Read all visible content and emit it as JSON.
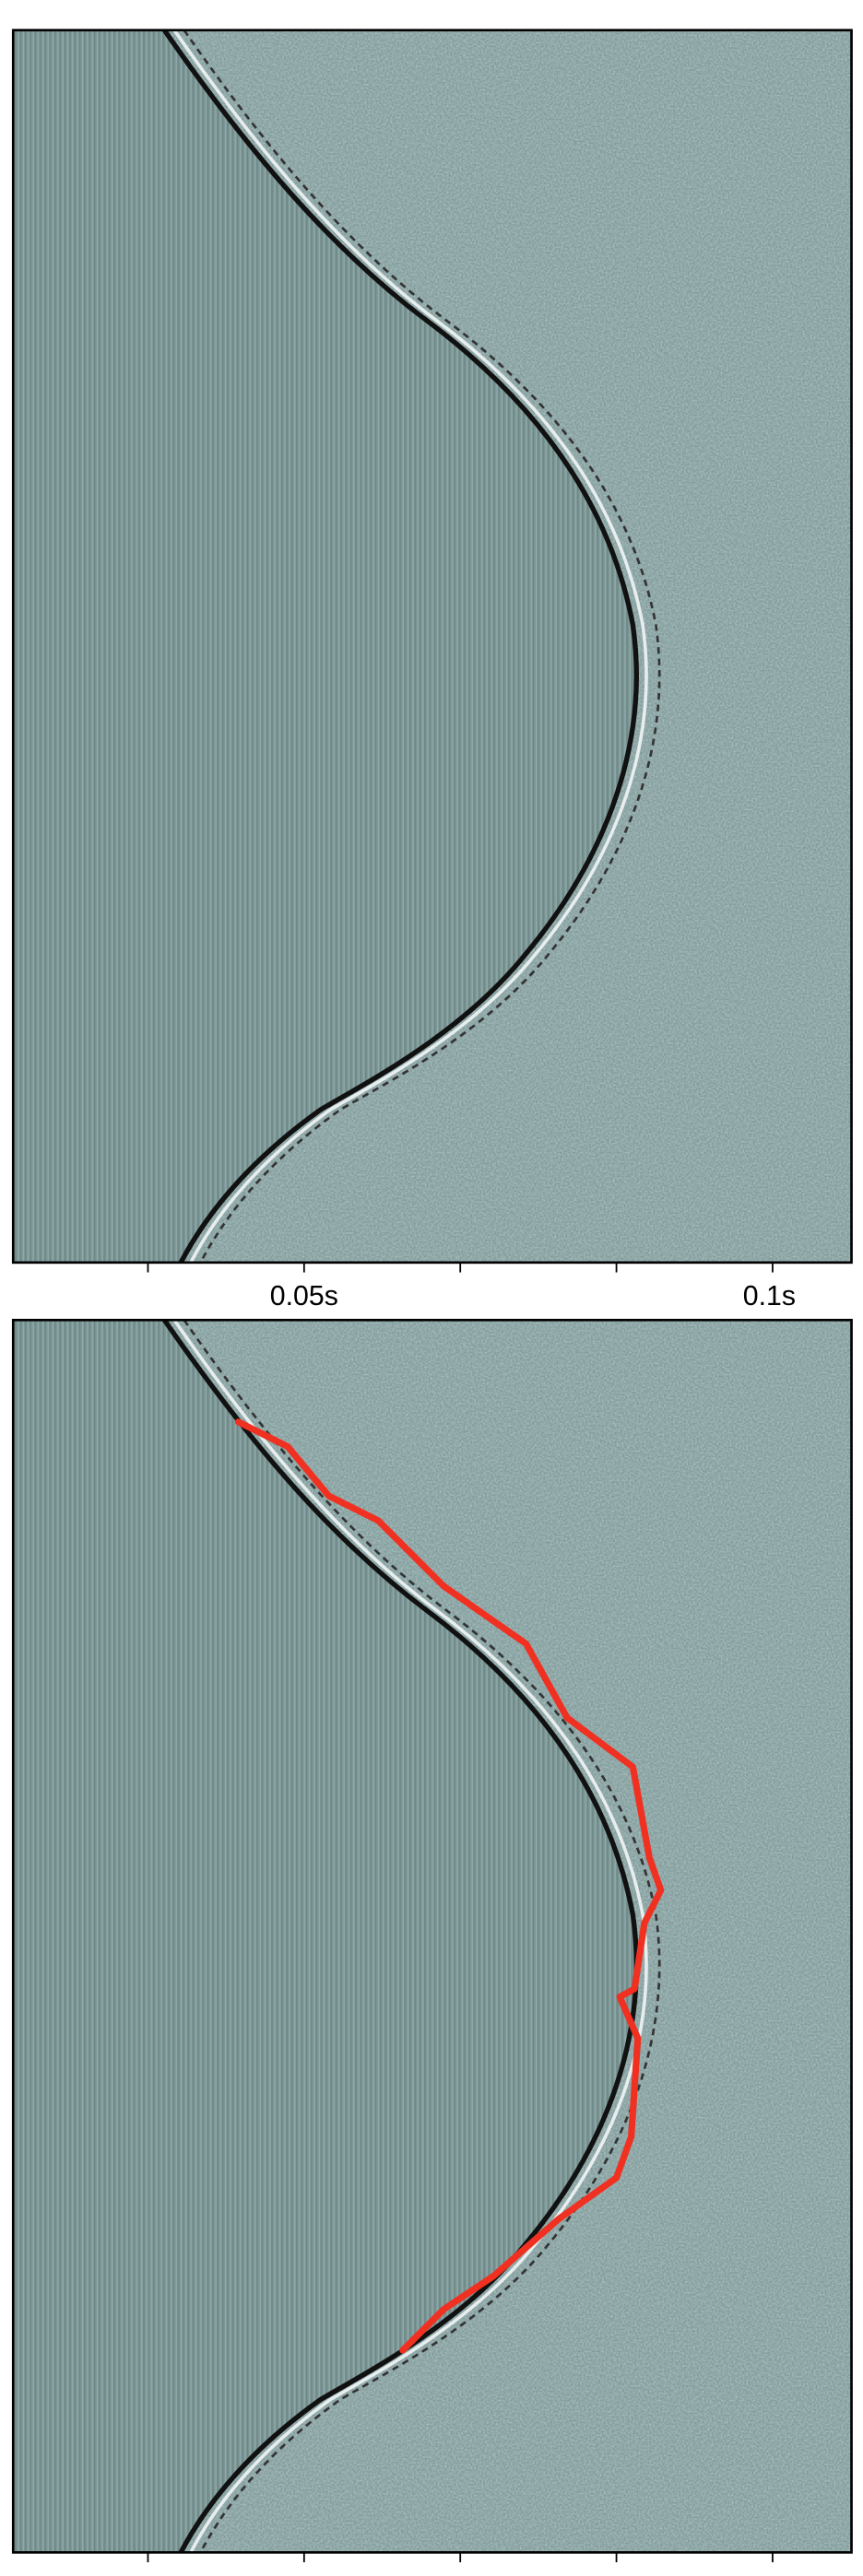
{
  "x_axis_labels": [
    "0.05s",
    "0.1s"
  ]
}
